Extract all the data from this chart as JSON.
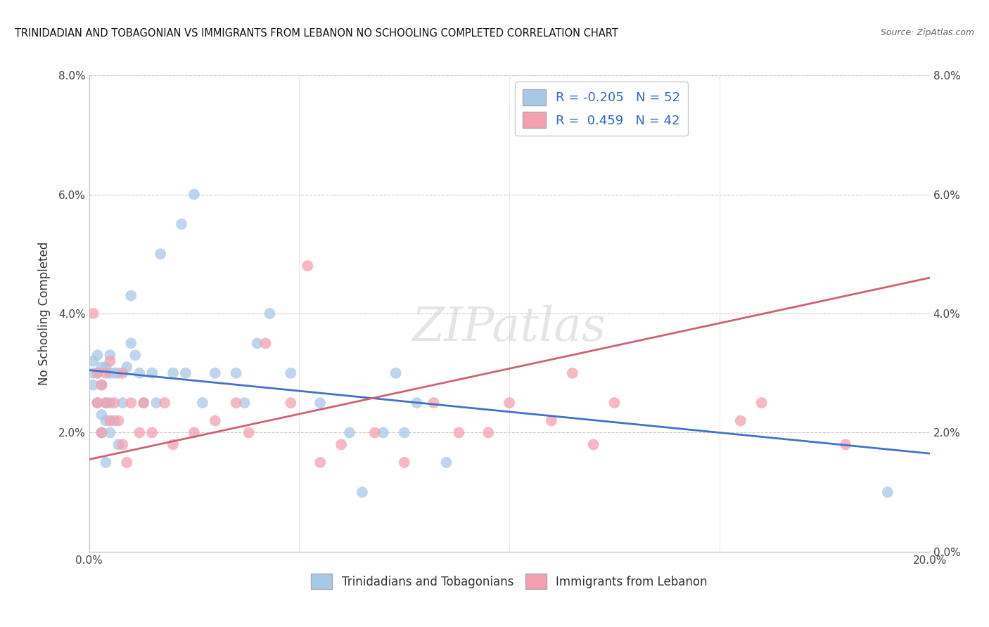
{
  "title": "TRINIDADIAN AND TOBAGONIAN VS IMMIGRANTS FROM LEBANON NO SCHOOLING COMPLETED CORRELATION CHART",
  "source": "Source: ZipAtlas.com",
  "ylabel": "No Schooling Completed",
  "legend_blue_label": "Trinidadians and Tobagonians",
  "legend_pink_label": "Immigrants from Lebanon",
  "blue_R": -0.205,
  "blue_N": 52,
  "pink_R": 0.459,
  "pink_N": 42,
  "xlim": [
    0.0,
    0.2
  ],
  "ylim": [
    0.0,
    0.08
  ],
  "xticks": [
    0.0,
    0.05,
    0.1,
    0.15,
    0.2
  ],
  "yticks": [
    0.0,
    0.02,
    0.04,
    0.06,
    0.08
  ],
  "blue_color": "#a8c8e8",
  "pink_color": "#f4a0b0",
  "blue_line_color": "#4472c4",
  "pink_line_color": "#d06070",
  "background_color": "#ffffff",
  "watermark_text": "ZIPatlas",
  "blue_points_x": [
    0.001,
    0.001,
    0.001,
    0.002,
    0.002,
    0.002,
    0.003,
    0.003,
    0.003,
    0.003,
    0.004,
    0.004,
    0.004,
    0.004,
    0.005,
    0.005,
    0.005,
    0.005,
    0.006,
    0.006,
    0.007,
    0.007,
    0.008,
    0.009,
    0.01,
    0.01,
    0.011,
    0.012,
    0.013,
    0.015,
    0.016,
    0.017,
    0.02,
    0.022,
    0.023,
    0.025,
    0.027,
    0.03,
    0.035,
    0.037,
    0.04,
    0.043,
    0.048,
    0.055,
    0.062,
    0.065,
    0.07,
    0.073,
    0.075,
    0.078,
    0.085,
    0.19
  ],
  "blue_points_y": [
    0.028,
    0.03,
    0.032,
    0.025,
    0.03,
    0.033,
    0.02,
    0.023,
    0.028,
    0.031,
    0.015,
    0.022,
    0.025,
    0.031,
    0.02,
    0.025,
    0.03,
    0.033,
    0.022,
    0.03,
    0.018,
    0.03,
    0.025,
    0.031,
    0.035,
    0.043,
    0.033,
    0.03,
    0.025,
    0.03,
    0.025,
    0.05,
    0.03,
    0.055,
    0.03,
    0.06,
    0.025,
    0.03,
    0.03,
    0.025,
    0.035,
    0.04,
    0.03,
    0.025,
    0.02,
    0.01,
    0.02,
    0.03,
    0.02,
    0.025,
    0.015,
    0.01
  ],
  "pink_points_x": [
    0.001,
    0.002,
    0.002,
    0.003,
    0.003,
    0.004,
    0.004,
    0.005,
    0.005,
    0.006,
    0.007,
    0.008,
    0.008,
    0.009,
    0.01,
    0.012,
    0.013,
    0.015,
    0.018,
    0.02,
    0.025,
    0.03,
    0.035,
    0.038,
    0.042,
    0.048,
    0.052,
    0.055,
    0.06,
    0.068,
    0.075,
    0.082,
    0.088,
    0.095,
    0.1,
    0.11,
    0.115,
    0.12,
    0.125,
    0.155,
    0.16,
    0.18
  ],
  "pink_points_y": [
    0.04,
    0.025,
    0.03,
    0.02,
    0.028,
    0.025,
    0.03,
    0.022,
    0.032,
    0.025,
    0.022,
    0.03,
    0.018,
    0.015,
    0.025,
    0.02,
    0.025,
    0.02,
    0.025,
    0.018,
    0.02,
    0.022,
    0.025,
    0.02,
    0.035,
    0.025,
    0.048,
    0.015,
    0.018,
    0.02,
    0.015,
    0.025,
    0.02,
    0.02,
    0.025,
    0.022,
    0.03,
    0.018,
    0.025,
    0.022,
    0.025,
    0.018
  ],
  "blue_trend_x": [
    0.0,
    0.2
  ],
  "blue_trend_y": [
    0.0305,
    0.0165
  ],
  "pink_trend_x": [
    0.0,
    0.2
  ],
  "pink_trend_y": [
    0.0155,
    0.046
  ]
}
